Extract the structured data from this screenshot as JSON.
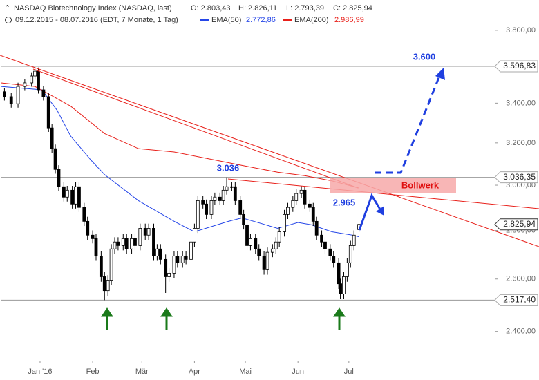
{
  "chart_data": {
    "type": "candlestick",
    "title": "NASDAQ Biotechnology Index (NASDAQ, last)",
    "subtitle": "09.12.2015 - 08.07.2016 (EDT, 7 Monate, 1 Tag)",
    "ohlc_labels": [
      "O: 2.803,43",
      "H: 2.826,11",
      "L: 2.793,39",
      "C: 2.825,94"
    ],
    "x": [
      2,
      6,
      10,
      14,
      18,
      20,
      22,
      25,
      28,
      30,
      32,
      34,
      37,
      39,
      42,
      44,
      46,
      49,
      51,
      54,
      56,
      59,
      61,
      63,
      65,
      67,
      69,
      72,
      74,
      77,
      79,
      82,
      85,
      87,
      90,
      92,
      94,
      97,
      99,
      102,
      104,
      107,
      109,
      112,
      114,
      116,
      119,
      121,
      124,
      126,
      129,
      131,
      133,
      136,
      138,
      141,
      143,
      145,
      147,
      150,
      152,
      155,
      157,
      160,
      162,
      164,
      167,
      169,
      172,
      174,
      177,
      179,
      182,
      184,
      186,
      189,
      191,
      194,
      196,
      199,
      200,
      202,
      204,
      206,
      208,
      211
    ],
    "open": [
      3460,
      3434,
      3397,
      3488,
      3507,
      3544,
      3570,
      3470,
      3434,
      3274,
      3172,
      3073,
      2993,
      2946,
      2977,
      2915,
      2993,
      2900,
      2839,
      2780,
      2765,
      2693,
      2609,
      2554,
      2595,
      2722,
      2751,
      2736,
      2765,
      2722,
      2765,
      2736,
      2809,
      2780,
      2809,
      2693,
      2722,
      2679,
      2609,
      2623,
      2693,
      2665,
      2693,
      2679,
      2751,
      2809,
      2930,
      2915,
      2869,
      2930,
      2946,
      2930,
      2977,
      2993,
      2993,
      2930,
      2869,
      2824,
      2736,
      2765,
      2722,
      2693,
      2637,
      2708,
      2722,
      2751,
      2794,
      2869,
      2900,
      2930,
      2962,
      2977,
      2915,
      2900,
      2839,
      2780,
      2751,
      2722,
      2693,
      2665,
      2581,
      2541,
      2609,
      2665,
      2736,
      2803.43
    ],
    "high": [
      3480,
      3454,
      3508,
      3527,
      3564,
      3590,
      3590,
      3490,
      3454,
      3294,
      3192,
      3093,
      3013,
      2997,
      2997,
      3013,
      3013,
      2920,
      2859,
      2800,
      2785,
      2713,
      2629,
      2615,
      2742,
      2771,
      2771,
      2785,
      2785,
      2785,
      2785,
      2829,
      2829,
      2829,
      2829,
      2742,
      2742,
      2699,
      2643,
      2713,
      2713,
      2713,
      2713,
      2771,
      2829,
      2950,
      2950,
      2935,
      2950,
      2966,
      2966,
      2997,
      3036.35,
      3013,
      3013,
      2950,
      2889,
      2844,
      2785,
      2785,
      2742,
      2713,
      2728,
      2742,
      2771,
      2814,
      2889,
      2920,
      2950,
      2982,
      2997,
      2997,
      2935,
      2920,
      2859,
      2800,
      2771,
      2742,
      2713,
      2685,
      2601,
      2629,
      2685,
      2756,
      2800,
      2826.11
    ],
    "low": [
      3414,
      3377,
      3377,
      3468,
      3487,
      3524,
      3450,
      3414,
      3254,
      3152,
      3053,
      2973,
      2926,
      2926,
      2895,
      2895,
      2880,
      2819,
      2760,
      2745,
      2673,
      2589,
      2517.4,
      2534,
      2575,
      2702,
      2716,
      2716,
      2702,
      2702,
      2716,
      2716,
      2760,
      2760,
      2673,
      2673,
      2659,
      2545,
      2589,
      2603,
      2645,
      2645,
      2659,
      2659,
      2731,
      2789,
      2895,
      2849,
      2849,
      2910,
      2910,
      2910,
      2957,
      2973,
      2910,
      2849,
      2804,
      2716,
      2716,
      2702,
      2673,
      2617,
      2617,
      2688,
      2702,
      2731,
      2774,
      2849,
      2880,
      2910,
      2942,
      2895,
      2880,
      2819,
      2760,
      2731,
      2702,
      2673,
      2645,
      2561,
      2521,
      2521,
      2589,
      2645,
      2716,
      2793.39
    ],
    "close": [
      3434,
      3397,
      3488,
      3507,
      3544,
      3570,
      3470,
      3434,
      3274,
      3172,
      3073,
      2993,
      2946,
      2977,
      2915,
      2993,
      2900,
      2839,
      2780,
      2765,
      2693,
      2609,
      2554,
      2595,
      2722,
      2751,
      2736,
      2765,
      2722,
      2765,
      2736,
      2809,
      2780,
      2809,
      2693,
      2722,
      2679,
      2609,
      2623,
      2693,
      2665,
      2693,
      2679,
      2751,
      2809,
      2930,
      2915,
      2869,
      2930,
      2946,
      2930,
      2977,
      2993,
      2993,
      2930,
      2869,
      2824,
      2736,
      2765,
      2722,
      2693,
      2637,
      2708,
      2722,
      2751,
      2794,
      2869,
      2900,
      2930,
      2962,
      2977,
      2915,
      2900,
      2839,
      2780,
      2751,
      2722,
      2693,
      2665,
      2581,
      2541,
      2609,
      2665,
      2736,
      2780,
      2825.94
    ],
    "up_color": "#ffffff",
    "down_color": "#000000",
    "series": [
      {
        "name": "EMA(50)",
        "color": "#2546e8",
        "value_label": "2.772,86",
        "x": [
          0,
          24,
          33,
          41,
          53,
          61,
          81,
          102,
          114,
          134,
          142,
          163,
          175,
          183,
          195,
          207,
          211
        ],
        "values": [
          3488,
          3470,
          3364,
          3234,
          3117,
          3049,
          2930,
          2839,
          2794,
          2839,
          2854,
          2809,
          2834,
          2824,
          2794,
          2780,
          2772.86
        ]
      },
      {
        "name": "EMA(200)",
        "color": "#e8201a",
        "value_label": "2.986,99",
        "x": [
          0,
          20,
          41,
          61,
          81,
          102,
          122,
          142,
          163,
          179,
          195,
          211
        ],
        "values": [
          3507,
          3488,
          3385,
          3246,
          3172,
          3156,
          3124,
          3092,
          3060,
          3044,
          3020,
          2986.99
        ]
      }
    ],
    "xlim": [
      0,
      291
    ],
    "xticks": [
      {
        "value": 23,
        "label": "Jan '16"
      },
      {
        "value": 54,
        "label": "Feb"
      },
      {
        "value": 83,
        "label": "Mär"
      },
      {
        "value": 114,
        "label": "Apr"
      },
      {
        "value": 144,
        "label": "Mai"
      },
      {
        "value": 175,
        "label": "Jun"
      },
      {
        "value": 205,
        "label": "Jul"
      }
    ],
    "ylim": [
      2300,
      3980
    ],
    "log_y": true,
    "yticks": [
      {
        "value": 3800,
        "label": "3.800,00"
      },
      {
        "value": 3400,
        "label": "3.400,00"
      },
      {
        "value": 3200,
        "label": "3.200,00"
      },
      {
        "value": 3000,
        "label": "3.000,00"
      },
      {
        "value": 2800,
        "label": "2.800,00"
      },
      {
        "value": 2600,
        "label": "2.600,00"
      },
      {
        "value": 2400,
        "label": "2.400,00"
      }
    ],
    "levels": [
      {
        "value": 3596.83,
        "label": "3.596,83"
      },
      {
        "value": 3036.35,
        "label": "3.036,35"
      },
      {
        "value": 2517.4,
        "label": "2.517,40"
      }
    ],
    "last_price": {
      "value": 2825.94,
      "label": "2.825,94"
    },
    "annotations": [
      "3.600",
      "3.036",
      "2.965",
      "Bollwerk"
    ]
  }
}
